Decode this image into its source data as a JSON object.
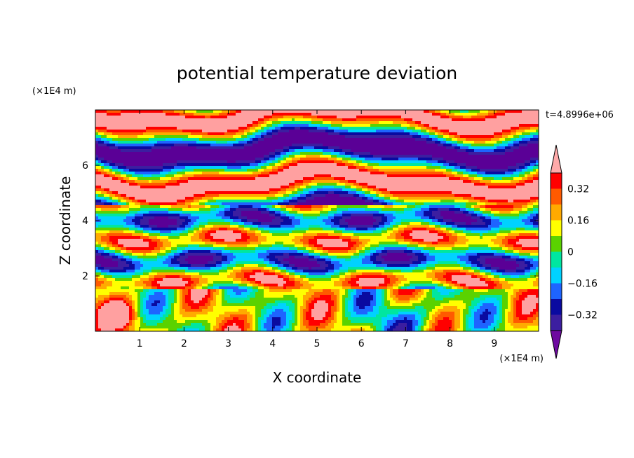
{
  "chart_data": {
    "type": "heatmap",
    "title": "potential temperature deviation",
    "xlabel": "X coordinate",
    "ylabel": "Z coordinate",
    "x_unit": "(×1E4 m)",
    "y_unit": "(×1E4 m)",
    "time_label": "t=4.8996e+06",
    "xlim": [
      0,
      10
    ],
    "ylim": [
      0,
      8
    ],
    "xticks": [
      "1",
      "2",
      "3",
      "4",
      "5",
      "6",
      "7",
      "8",
      "9"
    ],
    "yticks": [
      "2",
      "4",
      "6"
    ],
    "colorbar": {
      "labels": [
        "0.32",
        "0.16",
        "0",
        "−0.16",
        "−0.32"
      ],
      "label_values": [
        0.32,
        0.16,
        0,
        -0.16,
        -0.32
      ],
      "levels": [
        -0.4,
        -0.32,
        -0.24,
        -0.16,
        -0.08,
        0,
        0.08,
        0.16,
        0.24,
        0.32,
        0.4
      ],
      "colors": [
        "#5a0096",
        "#3c1ea0",
        "#0a0aa0",
        "#1e64ff",
        "#00d2ff",
        "#00e6a0",
        "#5ad200",
        "#ffff00",
        "#ffaa00",
        "#ff5a00",
        "#ff0000",
        "#ffa0a0"
      ],
      "under_color": "#6e0aa0",
      "over_color": "#ffaaaa"
    }
  }
}
